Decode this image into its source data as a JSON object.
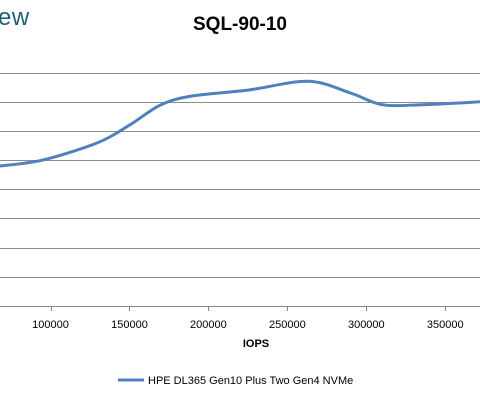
{
  "brand": {
    "logo_text": "ew"
  },
  "chart_data": {
    "type": "line",
    "title": "SQL-90-10",
    "xlabel": "IOPS",
    "ylabel": "",
    "xlim": [
      68000,
      372000
    ],
    "ylim": [
      0,
      8.5
    ],
    "x_ticks": [
      100000,
      150000,
      200000,
      250000,
      300000,
      350000
    ],
    "x_tick_labels": [
      "100000",
      "150000",
      "200000",
      "250000",
      "300000",
      "350000"
    ],
    "y_gridlines": [
      0,
      1,
      2,
      3,
      4,
      5,
      6,
      7,
      8
    ],
    "grid": true,
    "legend_position": "bottom",
    "series": [
      {
        "name": "HPE DL365 Gen10 Plus Two Gen4 NVMe",
        "color": "#4f81bd",
        "x": [
          68000,
          95000,
          130000,
          150000,
          170000,
          190000,
          225000,
          263000,
          290000,
          310000,
          335000,
          372000
        ],
        "y": [
          4.8,
          5.0,
          5.6,
          6.2,
          6.9,
          7.2,
          7.4,
          7.7,
          7.3,
          6.9,
          6.9,
          7.0
        ]
      }
    ]
  }
}
